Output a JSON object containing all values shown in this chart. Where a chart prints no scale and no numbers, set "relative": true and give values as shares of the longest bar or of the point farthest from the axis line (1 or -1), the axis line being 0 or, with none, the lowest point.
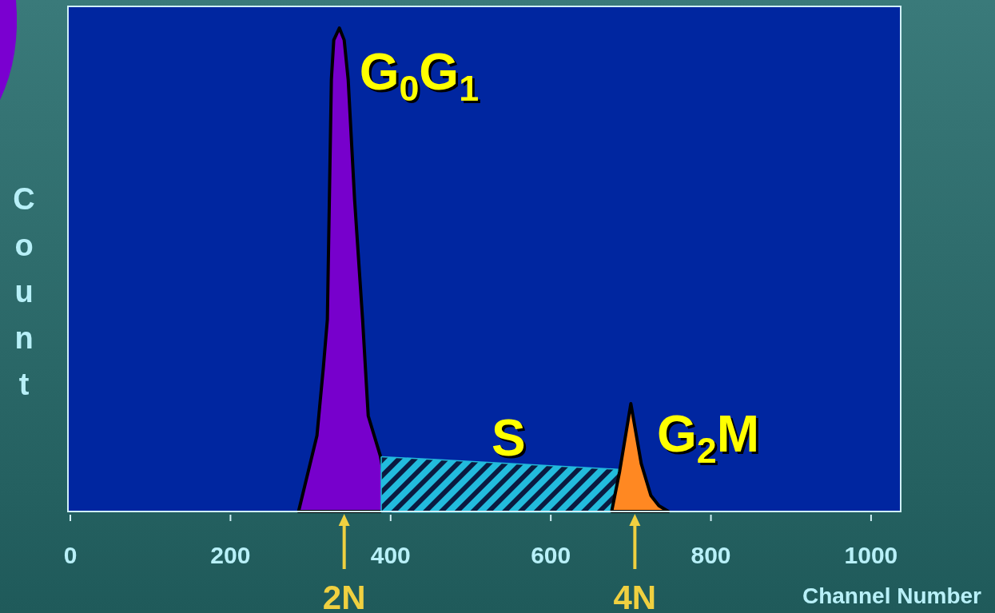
{
  "chart_data": {
    "type": "area",
    "relative": true,
    "xlabel": "Channel Number",
    "ylabel": "Count",
    "xlim": [
      -3,
      1037
    ],
    "xticks": [
      0,
      200,
      400,
      600,
      800,
      1000
    ],
    "series": [
      {
        "color": "#7700cc",
        "x": [
          285,
          308,
          316,
          321,
          326,
          329,
          336,
          342,
          347,
          355,
          365,
          372,
          387,
          400
        ],
        "values": [
          0,
          0.157,
          0.298,
          0.397,
          0.893,
          0.975,
          1,
          0.975,
          0.893,
          0.645,
          0.397,
          0.198,
          0.116,
          0
        ]
      },
      {
        "color": "#22bbdd",
        "x": [
          389,
          389,
          684,
          684
        ],
        "values": [
          0,
          0.112,
          0.086,
          0
        ]
      },
      {
        "color": "#ff8822",
        "x": [
          676,
          686,
          700,
          713,
          725,
          735,
          747
        ],
        "values": [
          0,
          0.083,
          0.223,
          0.099,
          0.033,
          0.012,
          0
        ]
      }
    ],
    "annotations": [
      {
        "text": "G$_{0}$G$_{1}$",
        "x": 336,
        "y": 1
      },
      "S",
      "G$_{2}$M",
      {
        "text": "2N",
        "x": 342,
        "y": 0
      },
      {
        "text": "4N",
        "x": 705,
        "y": 0
      }
    ]
  }
}
